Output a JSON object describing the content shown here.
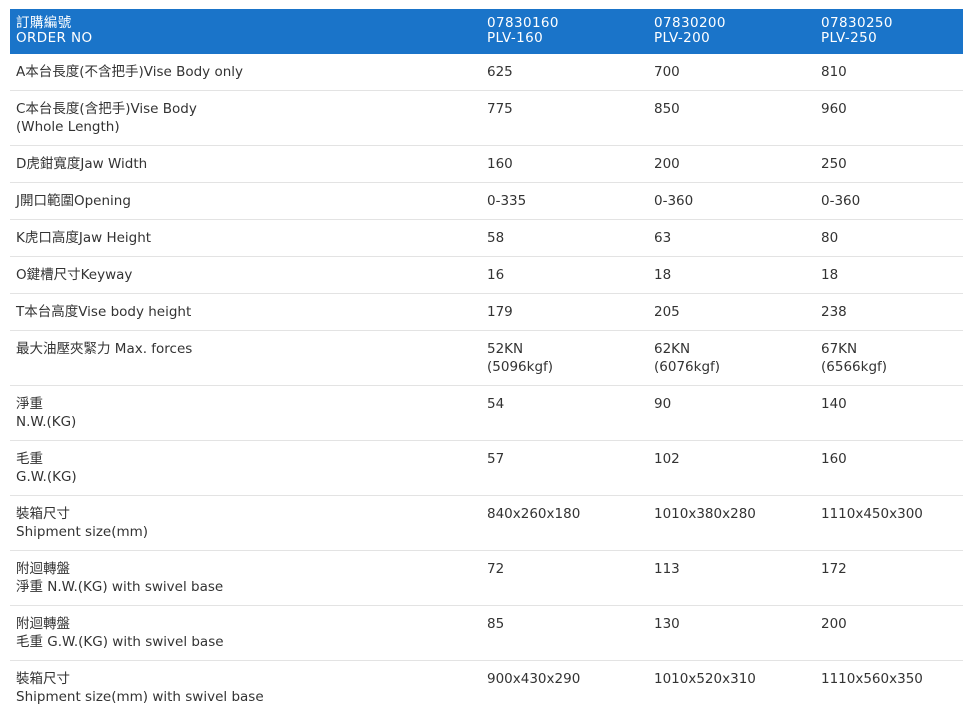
{
  "header": {
    "label_line1": "訂購編號",
    "label_line2": "ORDER NO",
    "models": [
      {
        "code": "07830160",
        "name": "PLV-160"
      },
      {
        "code": "07830200",
        "name": "PLV-200"
      },
      {
        "code": "07830250",
        "name": "PLV-250"
      }
    ]
  },
  "rows": [
    {
      "label": [
        "A本台長度(不含把手)Vise Body only"
      ],
      "values": [
        [
          "625"
        ],
        [
          "700"
        ],
        [
          "810"
        ]
      ]
    },
    {
      "label": [
        "C本台長度(含把手)Vise Body",
        "(Whole Length)"
      ],
      "values": [
        [
          "775"
        ],
        [
          "850"
        ],
        [
          "960"
        ]
      ]
    },
    {
      "label": [
        "D虎鉗寬度Jaw Width"
      ],
      "values": [
        [
          "160"
        ],
        [
          "200"
        ],
        [
          "250"
        ]
      ]
    },
    {
      "label": [
        "J開口範圍Opening"
      ],
      "values": [
        [
          "0-335"
        ],
        [
          "0-360"
        ],
        [
          "0-360"
        ]
      ]
    },
    {
      "label": [
        "K虎口高度Jaw Height"
      ],
      "values": [
        [
          "58"
        ],
        [
          "63"
        ],
        [
          "80"
        ]
      ]
    },
    {
      "label": [
        "O鍵槽尺寸Keyway"
      ],
      "values": [
        [
          "16"
        ],
        [
          "18"
        ],
        [
          "18"
        ]
      ]
    },
    {
      "label": [
        "T本台高度Vise body height"
      ],
      "values": [
        [
          "179"
        ],
        [
          "205"
        ],
        [
          "238"
        ]
      ]
    },
    {
      "label": [
        "最大油壓夾緊力 Max. forces"
      ],
      "values": [
        [
          "52KN",
          "(5096kgf)"
        ],
        [
          "62KN",
          "(6076kgf)"
        ],
        [
          "67KN",
          "(6566kgf)"
        ]
      ]
    },
    {
      "label": [
        "淨重",
        "N.W.(KG)"
      ],
      "values": [
        [
          "54"
        ],
        [
          "90"
        ],
        [
          "140"
        ]
      ]
    },
    {
      "label": [
        "毛重",
        "G.W.(KG)"
      ],
      "values": [
        [
          "57"
        ],
        [
          "102"
        ],
        [
          "160"
        ]
      ]
    },
    {
      "label": [
        "裝箱尺寸",
        "Shipment size(mm)"
      ],
      "values": [
        [
          "840x260x180"
        ],
        [
          "1010x380x280"
        ],
        [
          "1110x450x300"
        ]
      ]
    },
    {
      "label": [
        "附迴轉盤",
        "淨重 N.W.(KG) with swivel base"
      ],
      "values": [
        [
          "72"
        ],
        [
          "113"
        ],
        [
          "172"
        ]
      ]
    },
    {
      "label": [
        "附迴轉盤",
        "毛重 G.W.(KG) with swivel base"
      ],
      "values": [
        [
          "85"
        ],
        [
          "130"
        ],
        [
          "200"
        ]
      ]
    },
    {
      "label": [
        "裝箱尺寸",
        "Shipment size(mm) with swivel base"
      ],
      "values": [
        [
          "900x430x290"
        ],
        [
          "1010x520x310"
        ],
        [
          "1110x560x350"
        ]
      ]
    }
  ],
  "colors": {
    "header_bg": "#1a74c9",
    "header_text": "#ffffff",
    "body_text": "#333333",
    "row_divider": "#e3e3e3"
  }
}
